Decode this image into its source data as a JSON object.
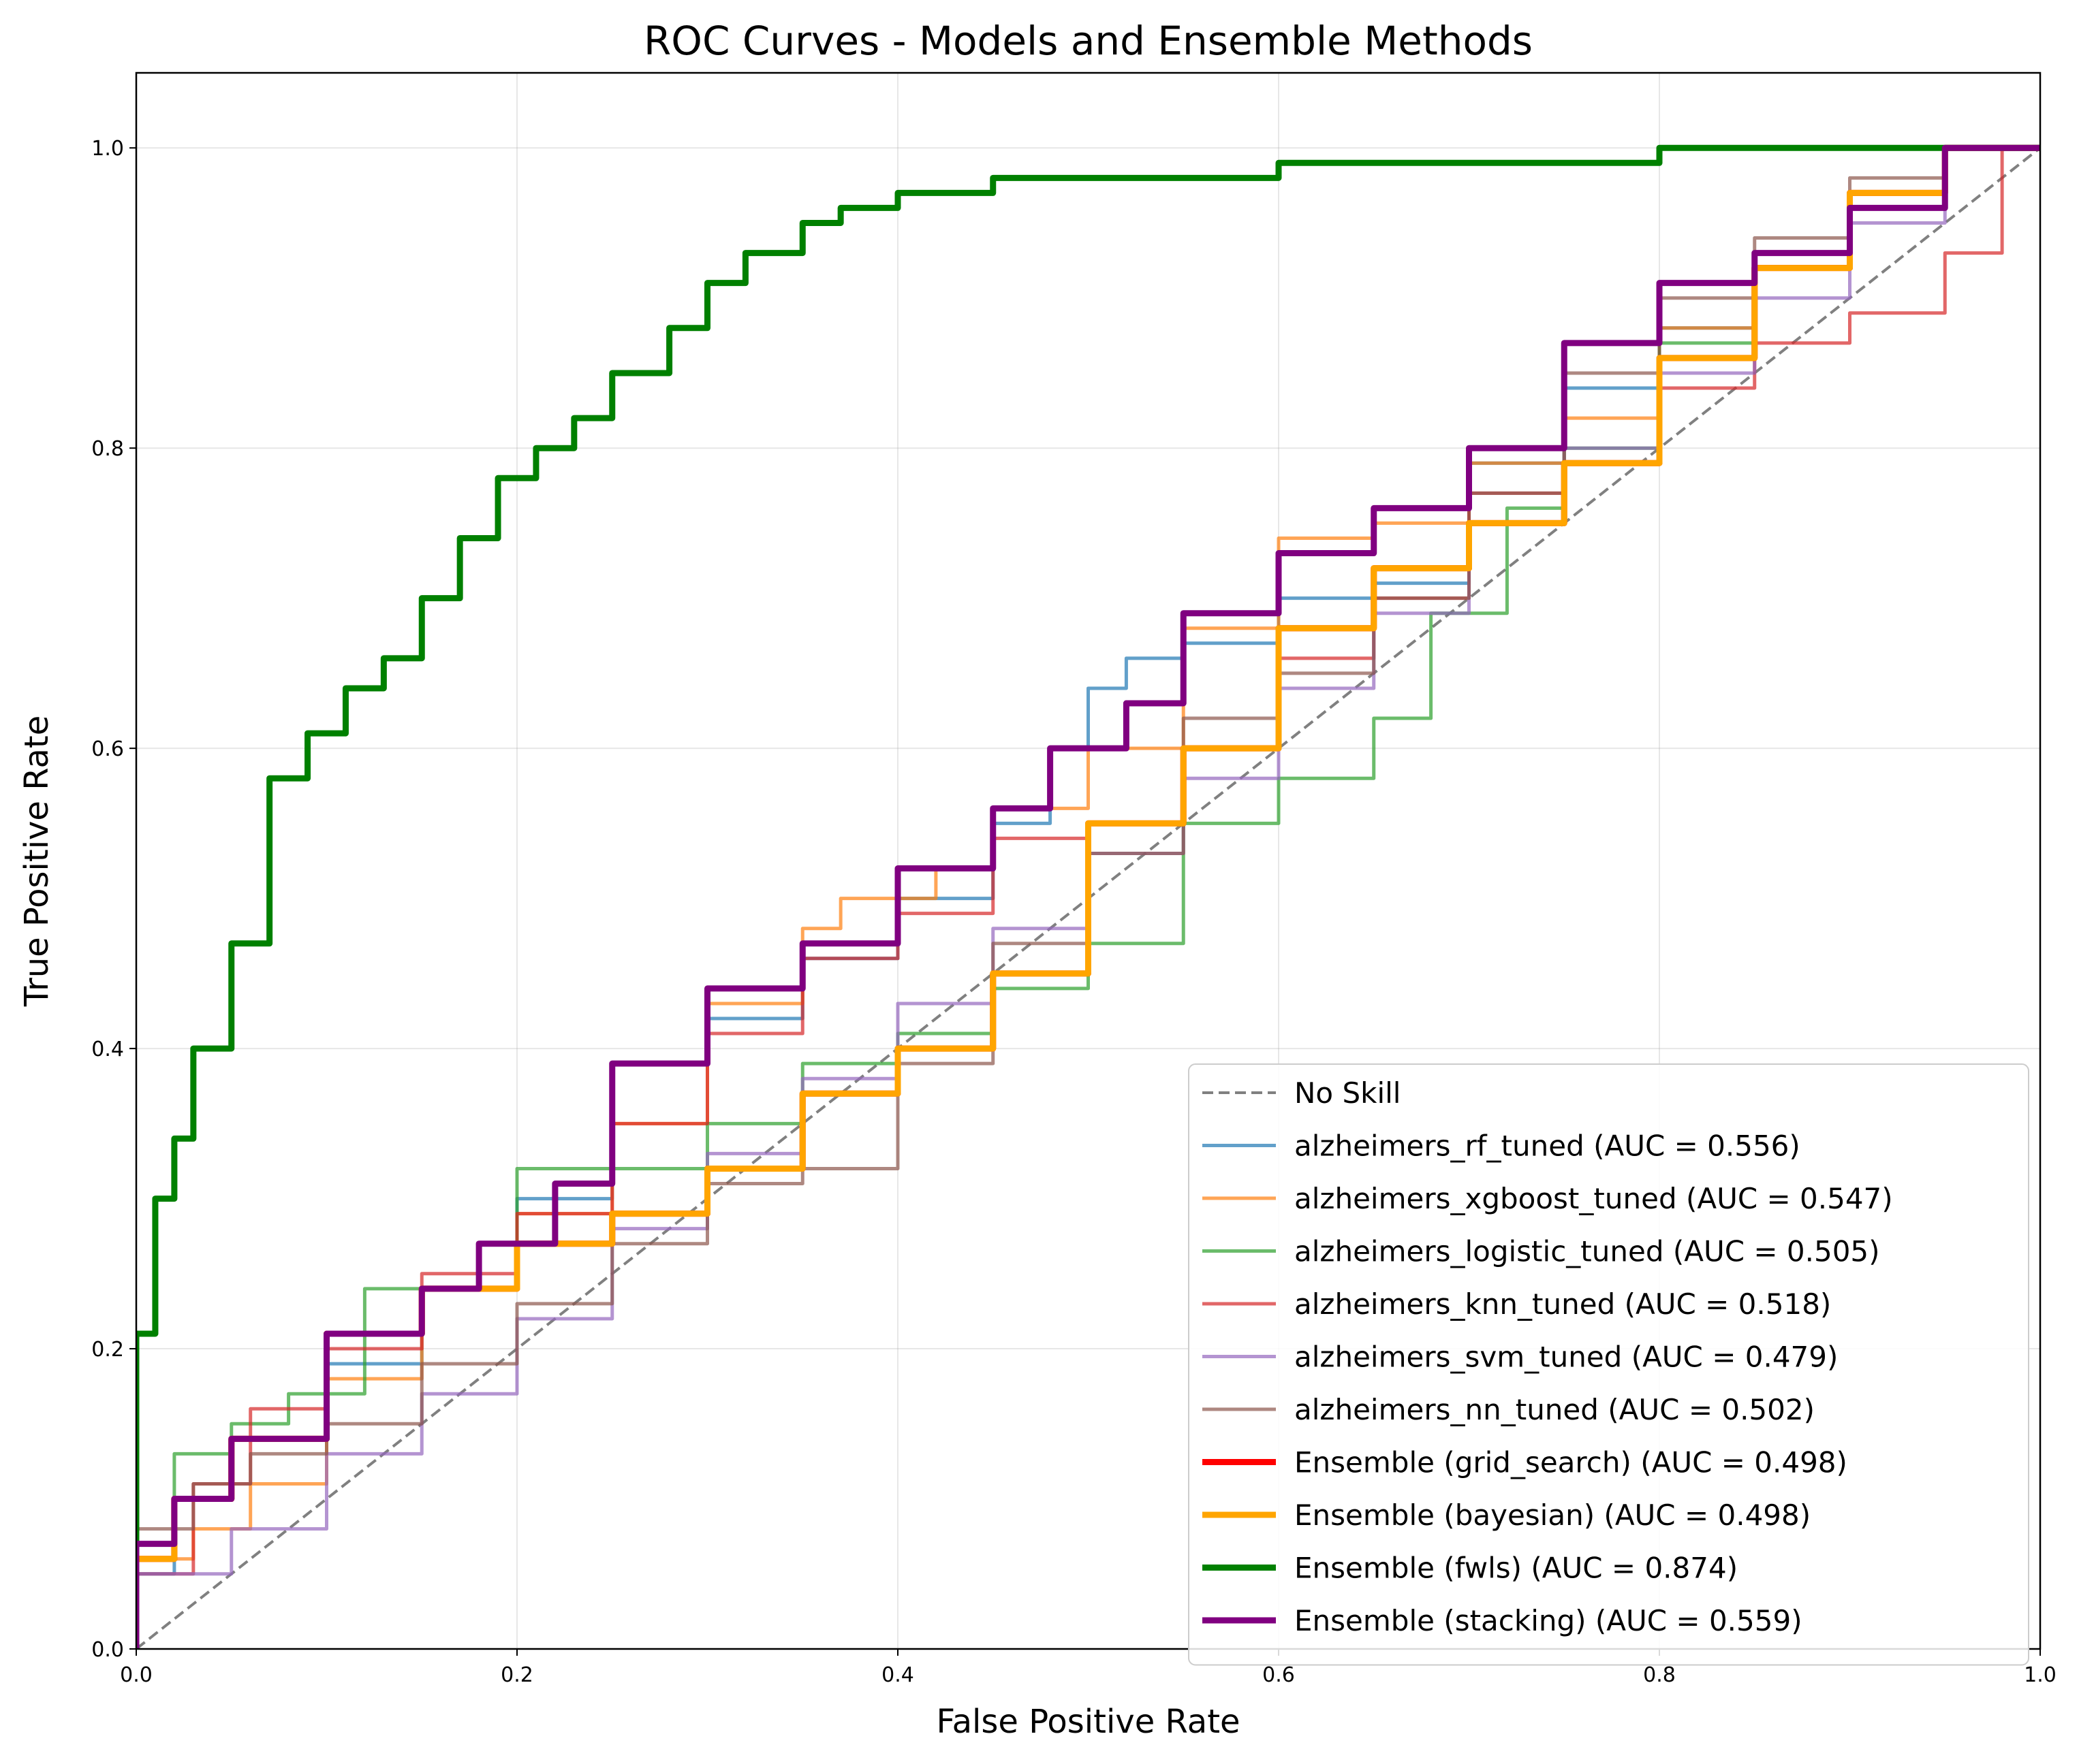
{
  "chart_data": {
    "type": "line",
    "title": "ROC Curves - Models and Ensemble Methods",
    "xlabel": "False Positive Rate",
    "ylabel": "True Positive Rate",
    "xlim": [
      0.0,
      1.0
    ],
    "ylim": [
      0.0,
      1.05
    ],
    "x_ticks": [
      "0.0",
      "0.2",
      "0.4",
      "0.6",
      "0.8",
      "1.0"
    ],
    "y_ticks": [
      "0.0",
      "0.2",
      "0.4",
      "0.6",
      "0.8",
      "1.0"
    ],
    "grid": true,
    "legend_position": "lower-right",
    "series": [
      {
        "name": "No Skill",
        "color": "#808080",
        "style": "dashed",
        "alpha": 1.0,
        "width": 4,
        "x": [
          0,
          1
        ],
        "y": [
          0,
          1
        ]
      },
      {
        "name": "alzheimers_rf_tuned (AUC = 0.556)",
        "color": "#1f77b4",
        "style": "solid",
        "alpha": 0.7,
        "width": 5,
        "x": [
          0,
          0.02,
          0.05,
          0.1,
          0.15,
          0.2,
          0.25,
          0.3,
          0.35,
          0.4,
          0.45,
          0.48,
          0.5,
          0.52,
          0.55,
          0.6,
          0.65,
          0.7,
          0.75,
          0.8,
          0.85,
          0.9,
          0.95,
          1.0
        ],
        "y": [
          0,
          0.05,
          0.1,
          0.14,
          0.19,
          0.24,
          0.3,
          0.39,
          0.42,
          0.46,
          0.5,
          0.55,
          0.6,
          0.64,
          0.66,
          0.67,
          0.7,
          0.71,
          0.79,
          0.84,
          0.88,
          0.93,
          0.97,
          1.0
        ]
      },
      {
        "name": "alzheimers_xgboost_tuned (AUC = 0.547)",
        "color": "#ff7f0e",
        "style": "solid",
        "alpha": 0.7,
        "width": 5,
        "x": [
          0,
          0.03,
          0.06,
          0.1,
          0.15,
          0.2,
          0.25,
          0.3,
          0.35,
          0.37,
          0.42,
          0.45,
          0.5,
          0.55,
          0.6,
          0.65,
          0.7,
          0.75,
          0.8,
          0.85,
          0.9,
          0.95,
          1.0
        ],
        "y": [
          0,
          0.06,
          0.08,
          0.11,
          0.18,
          0.24,
          0.29,
          0.35,
          0.43,
          0.48,
          0.5,
          0.52,
          0.56,
          0.6,
          0.68,
          0.74,
          0.75,
          0.79,
          0.82,
          0.88,
          0.93,
          0.96,
          1.0
        ]
      },
      {
        "name": "alzheimers_logistic_tuned (AUC = 0.505)",
        "color": "#2ca02c",
        "style": "solid",
        "alpha": 0.7,
        "width": 5,
        "x": [
          0,
          0.02,
          0.05,
          0.08,
          0.12,
          0.2,
          0.3,
          0.35,
          0.4,
          0.45,
          0.5,
          0.55,
          0.6,
          0.65,
          0.68,
          0.72,
          0.75,
          0.8,
          0.85,
          0.9,
          0.95,
          1.0
        ],
        "y": [
          0,
          0.06,
          0.13,
          0.15,
          0.17,
          0.24,
          0.32,
          0.35,
          0.39,
          0.41,
          0.44,
          0.47,
          0.55,
          0.58,
          0.62,
          0.69,
          0.76,
          0.8,
          0.87,
          0.92,
          0.96,
          1.0
        ]
      },
      {
        "name": "alzheimers_knn_tuned (AUC = 0.518)",
        "color": "#d62728",
        "style": "solid",
        "alpha": 0.7,
        "width": 5,
        "x": [
          0,
          0.03,
          0.06,
          0.1,
          0.15,
          0.2,
          0.25,
          0.3,
          0.35,
          0.4,
          0.45,
          0.5,
          0.55,
          0.6,
          0.62,
          0.65,
          0.7,
          0.75,
          0.8,
          0.85,
          0.9,
          0.95,
          0.98,
          1.0
        ],
        "y": [
          0,
          0.05,
          0.11,
          0.16,
          0.2,
          0.25,
          0.29,
          0.35,
          0.41,
          0.46,
          0.49,
          0.54,
          0.55,
          0.6,
          0.66,
          0.66,
          0.7,
          0.77,
          0.79,
          0.84,
          0.87,
          0.89,
          0.93,
          1.0
        ]
      },
      {
        "name": "alzheimers_svm_tuned (AUC = 0.479)",
        "color": "#9467bd",
        "style": "solid",
        "alpha": 0.7,
        "width": 5,
        "x": [
          0,
          0.05,
          0.1,
          0.15,
          0.2,
          0.25,
          0.3,
          0.35,
          0.4,
          0.45,
          0.5,
          0.55,
          0.6,
          0.65,
          0.7,
          0.75,
          0.8,
          0.85,
          0.9,
          0.95,
          1.0
        ],
        "y": [
          0,
          0.05,
          0.08,
          0.13,
          0.17,
          0.22,
          0.28,
          0.33,
          0.38,
          0.43,
          0.48,
          0.53,
          0.58,
          0.64,
          0.69,
          0.75,
          0.8,
          0.85,
          0.9,
          0.95,
          1.0
        ]
      },
      {
        "name": "alzheimers_nn_tuned (AUC = 0.502)",
        "color": "#8c564b",
        "style": "solid",
        "alpha": 0.7,
        "width": 5,
        "x": [
          0,
          0.03,
          0.06,
          0.1,
          0.15,
          0.2,
          0.25,
          0.3,
          0.35,
          0.4,
          0.45,
          0.5,
          0.55,
          0.6,
          0.65,
          0.7,
          0.75,
          0.8,
          0.85,
          0.9,
          0.95,
          1.0
        ],
        "y": [
          0,
          0.08,
          0.11,
          0.13,
          0.15,
          0.19,
          0.23,
          0.27,
          0.31,
          0.32,
          0.39,
          0.47,
          0.53,
          0.62,
          0.65,
          0.7,
          0.77,
          0.85,
          0.9,
          0.94,
          0.98,
          1.0
        ]
      },
      {
        "name": "Ensemble (grid_search) (AUC = 0.498)",
        "color": "#ff0000",
        "style": "solid",
        "alpha": 1.0,
        "width": 9,
        "x": [
          0,
          0.02,
          0.05,
          0.1,
          0.15,
          0.2,
          0.25,
          0.3,
          0.35,
          0.4,
          0.45,
          0.5,
          0.55,
          0.6,
          0.65,
          0.7,
          0.75,
          0.8,
          0.85,
          0.9,
          0.95,
          1.0
        ],
        "y": [
          0,
          0.06,
          0.1,
          0.14,
          0.21,
          0.24,
          0.27,
          0.29,
          0.32,
          0.37,
          0.4,
          0.45,
          0.55,
          0.6,
          0.68,
          0.72,
          0.75,
          0.79,
          0.86,
          0.92,
          0.97,
          1.0
        ]
      },
      {
        "name": "Ensemble (bayesian) (AUC = 0.498)",
        "color": "#ffa500",
        "style": "solid",
        "alpha": 1.0,
        "width": 9,
        "x": [
          0,
          0.02,
          0.05,
          0.1,
          0.15,
          0.2,
          0.25,
          0.3,
          0.35,
          0.4,
          0.45,
          0.5,
          0.55,
          0.6,
          0.65,
          0.7,
          0.75,
          0.8,
          0.85,
          0.9,
          0.95,
          1.0
        ],
        "y": [
          0,
          0.06,
          0.1,
          0.14,
          0.21,
          0.24,
          0.27,
          0.29,
          0.32,
          0.37,
          0.4,
          0.45,
          0.55,
          0.6,
          0.68,
          0.72,
          0.75,
          0.79,
          0.86,
          0.92,
          0.97,
          1.0
        ]
      },
      {
        "name": "Ensemble (fwls) (AUC = 0.874)",
        "color": "#008000",
        "style": "solid",
        "alpha": 1.0,
        "width": 9,
        "x": [
          0,
          0.01,
          0.02,
          0.03,
          0.05,
          0.07,
          0.09,
          0.11,
          0.13,
          0.15,
          0.17,
          0.19,
          0.21,
          0.23,
          0.25,
          0.28,
          0.3,
          0.32,
          0.35,
          0.37,
          0.4,
          0.45,
          0.5,
          0.6,
          0.65,
          0.7,
          0.8,
          0.9,
          1.0
        ],
        "y": [
          0,
          0.21,
          0.3,
          0.34,
          0.4,
          0.47,
          0.58,
          0.61,
          0.64,
          0.66,
          0.7,
          0.74,
          0.78,
          0.8,
          0.82,
          0.85,
          0.88,
          0.91,
          0.93,
          0.95,
          0.96,
          0.97,
          0.98,
          0.98,
          0.99,
          0.99,
          0.99,
          1.0,
          1.0
        ]
      },
      {
        "name": "Ensemble (stacking) (AUC = 0.559)",
        "color": "#800080",
        "style": "solid",
        "alpha": 1.0,
        "width": 9,
        "x": [
          0,
          0.02,
          0.05,
          0.1,
          0.15,
          0.18,
          0.22,
          0.25,
          0.3,
          0.35,
          0.4,
          0.45,
          0.48,
          0.52,
          0.55,
          0.6,
          0.65,
          0.7,
          0.75,
          0.8,
          0.85,
          0.9,
          0.95,
          1.0
        ],
        "y": [
          0,
          0.07,
          0.1,
          0.14,
          0.21,
          0.24,
          0.27,
          0.31,
          0.39,
          0.44,
          0.47,
          0.52,
          0.56,
          0.6,
          0.63,
          0.69,
          0.73,
          0.76,
          0.8,
          0.87,
          0.91,
          0.93,
          0.96,
          1.0
        ]
      }
    ]
  }
}
